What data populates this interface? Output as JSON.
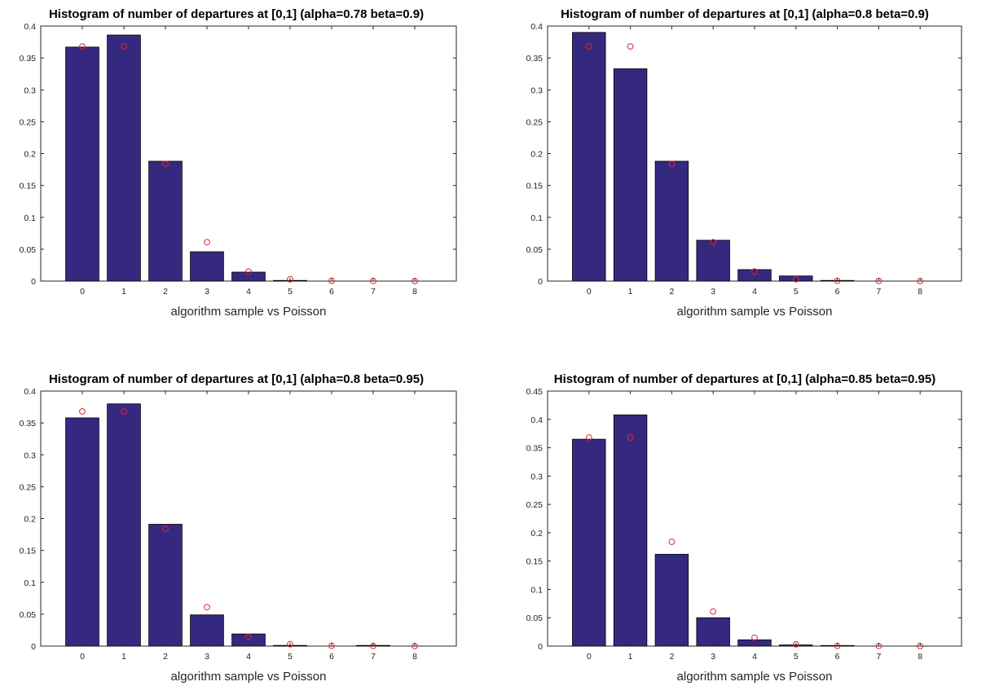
{
  "colors": {
    "bar_fill": "#35297f",
    "bar_edge": "#000000",
    "marker": "#e0262f",
    "axis": "#262626"
  },
  "chart_data": [
    {
      "type": "bar",
      "title": "Histogram of number of departures at [0,1] (alpha=0.78 beta=0.9)",
      "xlabel": "algorithm sample vs Poisson",
      "ylabel": "",
      "categories": [
        0,
        1,
        2,
        3,
        4,
        5,
        6,
        7,
        8
      ],
      "xlim": [
        -1,
        9
      ],
      "ylim": [
        0,
        0.4
      ],
      "yticks": [
        0,
        0.05,
        0.1,
        0.15,
        0.2,
        0.25,
        0.3,
        0.35,
        0.4
      ],
      "series": [
        {
          "values": [
            0.367,
            0.386,
            0.188,
            0.046,
            0.014,
            0.001,
            0,
            0,
            0
          ],
          "marker": "bar"
        },
        {
          "values": [
            0.368,
            0.368,
            0.184,
            0.061,
            0.015,
            0.003,
            0.0005,
            0.0001,
            0
          ],
          "marker": "circle"
        }
      ],
      "grid": false,
      "legend": "none"
    },
    {
      "type": "bar",
      "title": "Histogram of number of departures at [0,1] (alpha=0.8 beta=0.9)",
      "xlabel": "algorithm sample vs Poisson",
      "ylabel": "",
      "categories": [
        0,
        1,
        2,
        3,
        4,
        5,
        6,
        7,
        8
      ],
      "xlim": [
        -1,
        9
      ],
      "ylim": [
        0,
        0.4
      ],
      "yticks": [
        0,
        0.05,
        0.1,
        0.15,
        0.2,
        0.25,
        0.3,
        0.35,
        0.4
      ],
      "series": [
        {
          "values": [
            0.39,
            0.333,
            0.188,
            0.064,
            0.018,
            0.008,
            0.001,
            0,
            0
          ],
          "marker": "bar"
        },
        {
          "values": [
            0.368,
            0.368,
            0.184,
            0.061,
            0.015,
            0.003,
            0.0005,
            0.0001,
            0
          ],
          "marker": "circle"
        }
      ],
      "grid": false,
      "legend": "none"
    },
    {
      "type": "bar",
      "title": "Histogram of number of departures at [0,1] (alpha=0.8 beta=0.95)",
      "xlabel": "algorithm sample vs Poisson",
      "ylabel": "",
      "categories": [
        0,
        1,
        2,
        3,
        4,
        5,
        6,
        7,
        8
      ],
      "xlim": [
        -1,
        9
      ],
      "ylim": [
        0,
        0.4
      ],
      "yticks": [
        0,
        0.05,
        0.1,
        0.15,
        0.2,
        0.25,
        0.3,
        0.35,
        0.4
      ],
      "series": [
        {
          "values": [
            0.358,
            0.38,
            0.191,
            0.049,
            0.019,
            0.001,
            0,
            0.001,
            0
          ],
          "marker": "bar"
        },
        {
          "values": [
            0.368,
            0.368,
            0.184,
            0.061,
            0.015,
            0.003,
            0.0005,
            0.0001,
            0
          ],
          "marker": "circle"
        }
      ],
      "grid": false,
      "legend": "none"
    },
    {
      "type": "bar",
      "title": "Histogram of number of departures at [0,1] (alpha=0.85 beta=0.95)",
      "xlabel": "algorithm sample vs Poisson",
      "ylabel": "",
      "categories": [
        0,
        1,
        2,
        3,
        4,
        5,
        6,
        7,
        8
      ],
      "xlim": [
        -1,
        9
      ],
      "ylim": [
        0,
        0.45
      ],
      "yticks": [
        0,
        0.05,
        0.1,
        0.15,
        0.2,
        0.25,
        0.3,
        0.35,
        0.4,
        0.45
      ],
      "series": [
        {
          "values": [
            0.365,
            0.408,
            0.162,
            0.05,
            0.011,
            0.002,
            0.001,
            0,
            0
          ],
          "marker": "bar"
        },
        {
          "values": [
            0.368,
            0.368,
            0.184,
            0.061,
            0.015,
            0.003,
            0.0005,
            0.0001,
            0
          ],
          "marker": "circle"
        }
      ],
      "grid": false,
      "legend": "none"
    }
  ]
}
